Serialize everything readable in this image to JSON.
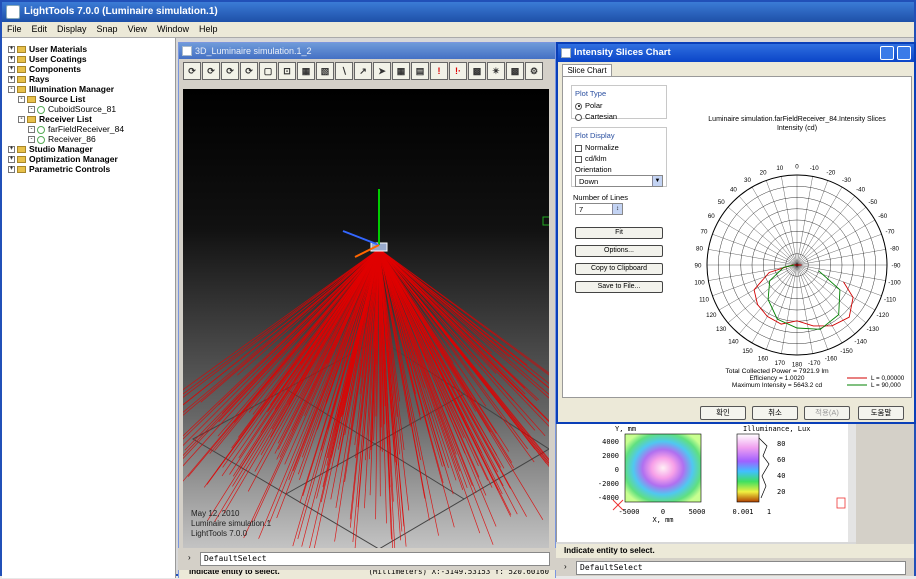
{
  "app": {
    "title": "LightTools 7.0.0 (Luminaire simulation.1)"
  },
  "menu": [
    "File",
    "Edit",
    "Display",
    "Snap",
    "View",
    "Window",
    "Help"
  ],
  "tree": [
    {
      "label": "User Materials",
      "level": 0,
      "type": "folder"
    },
    {
      "label": "User Coatings",
      "level": 0,
      "type": "folder"
    },
    {
      "label": "Components",
      "level": 0,
      "type": "folder"
    },
    {
      "label": "Rays",
      "level": 0,
      "type": "folder"
    },
    {
      "label": "Illumination Manager",
      "level": 0,
      "type": "folder"
    },
    {
      "label": "Source List",
      "level": 1,
      "type": "folder"
    },
    {
      "label": "CuboidSource_81",
      "level": 2,
      "type": "leaf"
    },
    {
      "label": "Receiver List",
      "level": 1,
      "type": "folder"
    },
    {
      "label": "farFieldReceiver_84",
      "level": 2,
      "type": "leaf"
    },
    {
      "label": "Receiver_86",
      "level": 2,
      "type": "leaf"
    },
    {
      "label": "Studio Manager",
      "level": 0,
      "type": "folder"
    },
    {
      "label": "Optimization Manager",
      "level": 0,
      "type": "folder"
    },
    {
      "label": "Parametric Controls",
      "level": 0,
      "type": "folder"
    }
  ],
  "view3d": {
    "title": "3D_Luminaire simulation.1_2",
    "info_date": "May 12, 2010",
    "info_file": "Luminaire simulation.1",
    "info_version": "LightTools 7.0.0",
    "status": "Indicate entity to select.",
    "coords": "(Millimeters) X:-3149.53153 Y: 520.60160",
    "command": "DefaultSelect",
    "toolbar_marks": [
      "!",
      "!&#183;"
    ]
  },
  "dialog": {
    "title": "Intensity Slices Chart",
    "tab": "Slice Chart",
    "plot_type_label": "Plot Type",
    "polar_label": "Polar",
    "cartesian_label": "Cartesian",
    "plot_display_label": "Plot Display",
    "normalize_label": "Normalize",
    "cdklm_label": "cd/klm",
    "orientation_label": "Orientation",
    "orientation_value": "Down",
    "lines_label": "Number of Lines",
    "lines_value": "7",
    "fit_btn": "Fit",
    "options_btn": "Options...",
    "copy_btn": "Copy to Clipboard",
    "save_btn": "Save to File...",
    "ok_btn": "확인",
    "cancel_btn": "취소",
    "apply_btn": "적용(A)",
    "help_btn": "도움말"
  },
  "chart_data": {
    "type": "polar",
    "title": "Luminaire simulation.farFieldReceiver_84.Intensity Slices",
    "subtitle": "Intensity (cd)",
    "angle_ticks": [
      -180,
      -170,
      -160,
      -150,
      -140,
      -130,
      -120,
      -110,
      -100,
      -90,
      -80,
      -70,
      -60,
      -50,
      -40,
      -30,
      -20,
      -10,
      0,
      10,
      20,
      30,
      40,
      50,
      60,
      70,
      80,
      90,
      100,
      110,
      120,
      130,
      140,
      150,
      160,
      170,
      180
    ],
    "series_colors": [
      "#d00000",
      "#008000"
    ],
    "legend": [
      {
        "text": "L = 0,00000",
        "color": "#d00000"
      },
      {
        "text": "L = 90,000",
        "color": "#008000"
      }
    ],
    "total_power": "Total Collected Power = 7921.9 lm",
    "efficiency": "Efficiency = 1.0020",
    "max_intensity": "Maximum Intensity = 5643.2 cd"
  },
  "plot2d": {
    "left_ylabel": "Y, mm",
    "left_xlabel": "X, mm",
    "left_yticks": [
      "4000",
      "2000",
      "0",
      "-2000",
      "-4000"
    ],
    "left_xticks": [
      "-5000",
      "0",
      "5000"
    ],
    "right_title": "Illuminance, Lux",
    "right_ticks": [
      "80",
      "60",
      "40",
      "20"
    ],
    "right_xticks": [
      "0.001",
      "1"
    ],
    "status": "Indicate entity to select.",
    "command": "DefaultSelect"
  }
}
